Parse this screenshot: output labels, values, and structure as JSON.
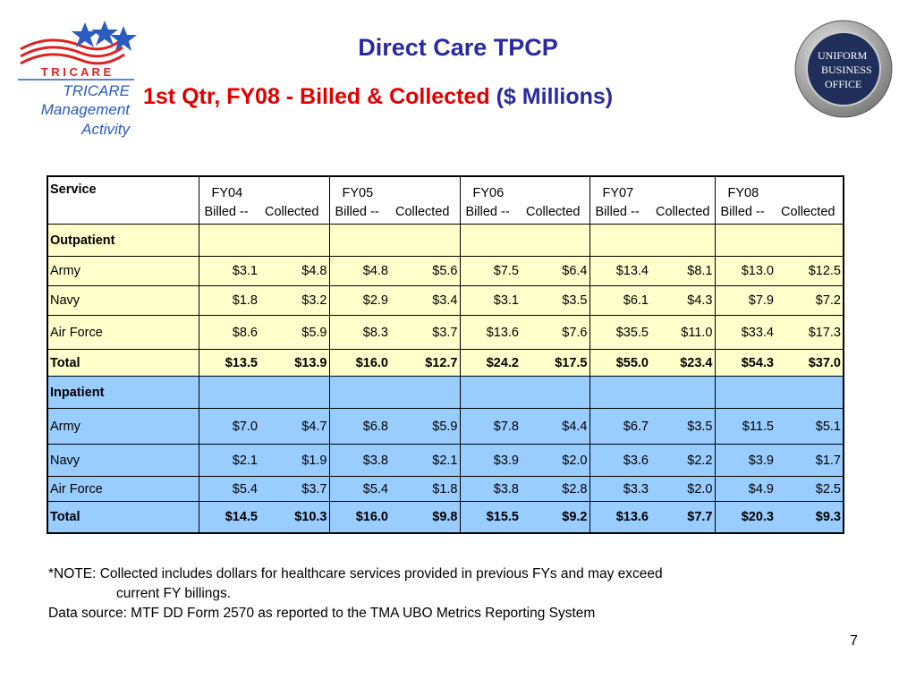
{
  "logo_left": {
    "wordmark": "T R I C A R E",
    "org": [
      "TRICARE",
      "Management",
      "Activity"
    ]
  },
  "logo_right": {
    "lines": [
      "UNIFORM",
      "BUSINESS",
      "OFFICE"
    ]
  },
  "header": {
    "title": "Direct Care TPCP",
    "subtitle": "1st Qtr, FY08 - Billed & Collected",
    "unit": "($ Millions)"
  },
  "table": {
    "service_header": "Service",
    "years": [
      "FY04",
      "FY05",
      "FY06",
      "FY07",
      "FY08"
    ],
    "sub_headers": [
      "Billed --",
      "Collected"
    ],
    "sections": [
      {
        "label": "Outpatient",
        "rows": [
          {
            "service": "Army",
            "values": [
              "$3.1",
              "$4.8",
              "$4.8",
              "$5.6",
              "$7.5",
              "$6.4",
              "$13.4",
              "$8.1",
              "$13.0",
              "$12.5"
            ]
          },
          {
            "service": "Navy",
            "values": [
              "$1.8",
              "$3.2",
              "$2.9",
              "$3.4",
              "$3.1",
              "$3.5",
              "$6.1",
              "$4.3",
              "$7.9",
              "$7.2"
            ]
          },
          {
            "service": "Air Force",
            "values": [
              "$8.6",
              "$5.9",
              "$8.3",
              "$3.7",
              "$13.6",
              "$7.6",
              "$35.5",
              "$11.0",
              "$33.4",
              "$17.3"
            ]
          },
          {
            "service": "Total",
            "values": [
              "$13.5",
              "$13.9",
              "$16.0",
              "$12.7",
              "$24.2",
              "$17.5",
              "$55.0",
              "$23.4",
              "$54.3",
              "$37.0"
            ]
          }
        ]
      },
      {
        "label": "Inpatient",
        "rows": [
          {
            "service": "Army",
            "values": [
              "$7.0",
              "$4.7",
              "$6.8",
              "$5.9",
              "$7.8",
              "$4.4",
              "$6.7",
              "$3.5",
              "$11.5",
              "$5.1"
            ]
          },
          {
            "service": "Navy",
            "values": [
              "$2.1",
              "$1.9",
              "$3.8",
              "$2.1",
              "$3.9",
              "$2.0",
              "$3.6",
              "$2.2",
              "$3.9",
              "$1.7"
            ]
          },
          {
            "service": "Air Force",
            "values": [
              "$5.4",
              "$3.7",
              "$5.4",
              "$1.8",
              "$3.8",
              "$2.8",
              "$3.3",
              "$2.0",
              "$4.9",
              "$2.5"
            ]
          },
          {
            "service": "Total",
            "values": [
              "$14.5",
              "$10.3",
              "$16.0",
              "$9.8",
              "$15.5",
              "$9.2",
              "$13.6",
              "$7.7",
              "$20.3",
              "$9.3"
            ]
          }
        ]
      }
    ]
  },
  "notes": {
    "note": [
      "*NOTE: Collected includes dollars for healthcare services provided in previous FYs and may exceed",
      "current  FY billings."
    ],
    "source": "Data source: MTF DD Form 2570 as reported to the TMA UBO Metrics Reporting System"
  },
  "page_number": "7"
}
